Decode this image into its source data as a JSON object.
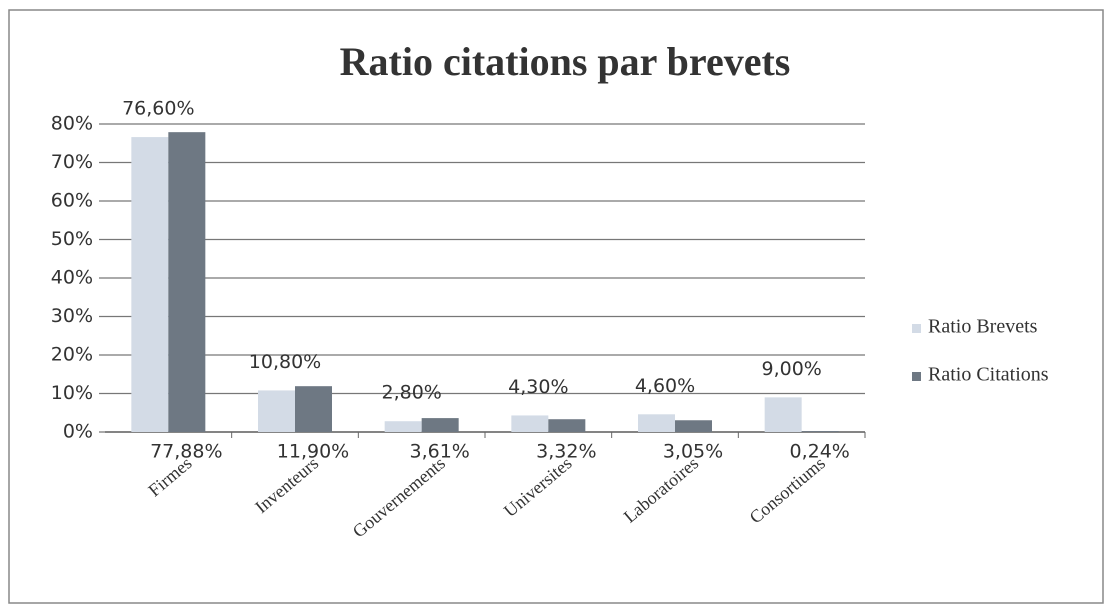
{
  "chart_data": {
    "type": "bar",
    "title": "Ratio citations par brevets",
    "categories": [
      "Firmes",
      "Inventeurs",
      "Gouvernements",
      "Universites",
      "Laboratoires",
      "Consortiums"
    ],
    "series": [
      {
        "name": "Ratio Brevets",
        "color": "#d3dbe6",
        "values": [
          76.6,
          10.8,
          2.8,
          4.3,
          4.6,
          9.0
        ],
        "value_labels": [
          "76,60%",
          "10,80%",
          "2,80%",
          "4,30%",
          "4,60%",
          "9,00%"
        ]
      },
      {
        "name": "Ratio Citations",
        "color": "#6e7883",
        "values": [
          77.88,
          11.9,
          3.61,
          3.32,
          3.05,
          0.24
        ],
        "value_labels": [
          "77,88%",
          "11,90%",
          "3,61%",
          "3,32%",
          "3,05%",
          "0,24%"
        ]
      }
    ],
    "ylim": [
      0,
      80
    ],
    "yticks": [
      {
        "value": 0,
        "label": "0%"
      },
      {
        "value": 10,
        "label": "10%"
      },
      {
        "value": 20,
        "label": "20%"
      },
      {
        "value": 30,
        "label": "30%"
      },
      {
        "value": 40,
        "label": "40%"
      },
      {
        "value": 50,
        "label": "50%"
      },
      {
        "value": 60,
        "label": "60%"
      },
      {
        "value": 70,
        "label": "70%"
      },
      {
        "value": 80,
        "label": "80%"
      }
    ],
    "grid": true,
    "legend": "right"
  }
}
